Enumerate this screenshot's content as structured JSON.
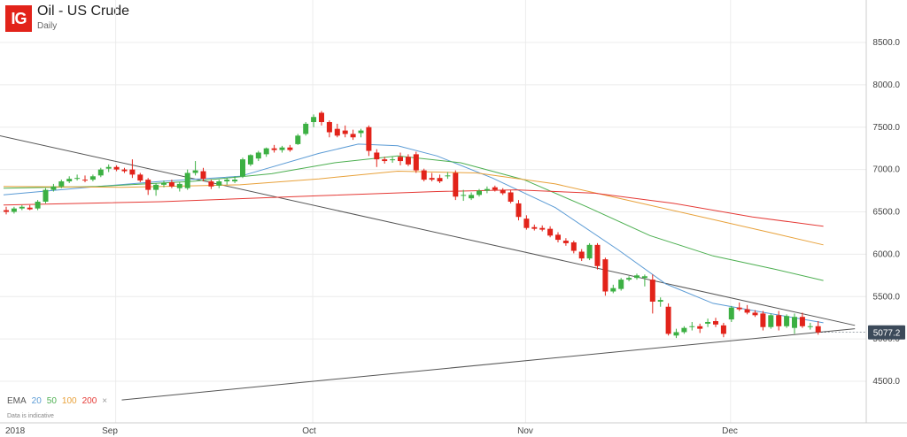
{
  "header": {
    "logo_text": "IG",
    "title": "Oil - US Crude",
    "timeframe": "Daily"
  },
  "legend": {
    "label": "EMA",
    "periods": [
      "20",
      "50",
      "100",
      "200"
    ],
    "colors": [
      "#5b9bd5",
      "#4caf50",
      "#e8a13a",
      "#e53935"
    ],
    "close": "×"
  },
  "note": "Data is indicative",
  "colors": {
    "up": "#3cb043",
    "down": "#e2231a",
    "trendline": "#555555",
    "price_tag": "#3c4a5a"
  },
  "chart_data": {
    "type": "candlestick",
    "y_ticks": [
      4500,
      5000,
      5500,
      6000,
      6500,
      7000,
      7500,
      8000,
      8500
    ],
    "y_tick_labels": [
      "4500.0",
      "5000.0",
      "5500.0",
      "6000.0",
      "6500.0",
      "7000.0",
      "7500.0",
      "8000.0",
      "8500.0"
    ],
    "x_labels": [
      "2018",
      "Sep",
      "Oct",
      "Nov",
      "Dec"
    ],
    "last_price": "5077.2",
    "candles": [
      {
        "o": 6520,
        "h": 6560,
        "l": 6470,
        "c": 6500
      },
      {
        "o": 6500,
        "h": 6560,
        "l": 6480,
        "c": 6540
      },
      {
        "o": 6540,
        "h": 6580,
        "l": 6520,
        "c": 6560
      },
      {
        "o": 6550,
        "h": 6580,
        "l": 6520,
        "c": 6530
      },
      {
        "o": 6540,
        "h": 6640,
        "l": 6520,
        "c": 6620
      },
      {
        "o": 6620,
        "h": 6780,
        "l": 6600,
        "c": 6760
      },
      {
        "o": 6760,
        "h": 6830,
        "l": 6740,
        "c": 6800
      },
      {
        "o": 6800,
        "h": 6880,
        "l": 6780,
        "c": 6860
      },
      {
        "o": 6860,
        "h": 6920,
        "l": 6840,
        "c": 6890
      },
      {
        "o": 6890,
        "h": 6940,
        "l": 6870,
        "c": 6900
      },
      {
        "o": 6880,
        "h": 6930,
        "l": 6850,
        "c": 6870
      },
      {
        "o": 6880,
        "h": 6940,
        "l": 6860,
        "c": 6920
      },
      {
        "o": 6930,
        "h": 7020,
        "l": 6910,
        "c": 7000
      },
      {
        "o": 7010,
        "h": 7060,
        "l": 6970,
        "c": 7030
      },
      {
        "o": 7030,
        "h": 7050,
        "l": 6980,
        "c": 7000
      },
      {
        "o": 7000,
        "h": 7020,
        "l": 6960,
        "c": 6980
      },
      {
        "o": 7000,
        "h": 7120,
        "l": 6900,
        "c": 6940
      },
      {
        "o": 6940,
        "h": 6960,
        "l": 6850,
        "c": 6870
      },
      {
        "o": 6880,
        "h": 6900,
        "l": 6700,
        "c": 6760
      },
      {
        "o": 6760,
        "h": 6840,
        "l": 6690,
        "c": 6820
      },
      {
        "o": 6820,
        "h": 6870,
        "l": 6790,
        "c": 6840
      },
      {
        "o": 6850,
        "h": 6880,
        "l": 6780,
        "c": 6800
      },
      {
        "o": 6780,
        "h": 6850,
        "l": 6740,
        "c": 6830
      },
      {
        "o": 6780,
        "h": 7000,
        "l": 6760,
        "c": 6960
      },
      {
        "o": 6960,
        "h": 7100,
        "l": 6930,
        "c": 6990
      },
      {
        "o": 6980,
        "h": 7020,
        "l": 6860,
        "c": 6890
      },
      {
        "o": 6860,
        "h": 6880,
        "l": 6770,
        "c": 6800
      },
      {
        "o": 6810,
        "h": 6880,
        "l": 6780,
        "c": 6860
      },
      {
        "o": 6860,
        "h": 6900,
        "l": 6820,
        "c": 6880
      },
      {
        "o": 6860,
        "h": 6920,
        "l": 6840,
        "c": 6880
      },
      {
        "o": 6920,
        "h": 7140,
        "l": 6900,
        "c": 7120
      },
      {
        "o": 7060,
        "h": 7180,
        "l": 7040,
        "c": 7170
      },
      {
        "o": 7130,
        "h": 7220,
        "l": 7100,
        "c": 7200
      },
      {
        "o": 7180,
        "h": 7260,
        "l": 7150,
        "c": 7250
      },
      {
        "o": 7250,
        "h": 7290,
        "l": 7200,
        "c": 7230
      },
      {
        "o": 7230,
        "h": 7280,
        "l": 7200,
        "c": 7260
      },
      {
        "o": 7260,
        "h": 7290,
        "l": 7210,
        "c": 7230
      },
      {
        "o": 7300,
        "h": 7420,
        "l": 7290,
        "c": 7400
      },
      {
        "o": 7420,
        "h": 7560,
        "l": 7400,
        "c": 7540
      },
      {
        "o": 7560,
        "h": 7650,
        "l": 7500,
        "c": 7620
      },
      {
        "o": 7670,
        "h": 7690,
        "l": 7520,
        "c": 7560
      },
      {
        "o": 7560,
        "h": 7580,
        "l": 7380,
        "c": 7440
      },
      {
        "o": 7480,
        "h": 7540,
        "l": 7380,
        "c": 7400
      },
      {
        "o": 7460,
        "h": 7520,
        "l": 7380,
        "c": 7420
      },
      {
        "o": 7420,
        "h": 7470,
        "l": 7350,
        "c": 7380
      },
      {
        "o": 7430,
        "h": 7480,
        "l": 7380,
        "c": 7460
      },
      {
        "o": 7500,
        "h": 7520,
        "l": 7160,
        "c": 7220
      },
      {
        "o": 7200,
        "h": 7240,
        "l": 7030,
        "c": 7120
      },
      {
        "o": 7120,
        "h": 7150,
        "l": 7070,
        "c": 7100
      },
      {
        "o": 7110,
        "h": 7150,
        "l": 7080,
        "c": 7120
      },
      {
        "o": 7150,
        "h": 7200,
        "l": 7050,
        "c": 7100
      },
      {
        "o": 7150,
        "h": 7180,
        "l": 7040,
        "c": 7060
      },
      {
        "o": 7180,
        "h": 7210,
        "l": 6960,
        "c": 6990
      },
      {
        "o": 6990,
        "h": 7010,
        "l": 6860,
        "c": 6880
      },
      {
        "o": 6900,
        "h": 6960,
        "l": 6860,
        "c": 6880
      },
      {
        "o": 6900,
        "h": 6940,
        "l": 6840,
        "c": 6860
      },
      {
        "o": 6920,
        "h": 6970,
        "l": 6890,
        "c": 6930
      },
      {
        "o": 6960,
        "h": 6990,
        "l": 6640,
        "c": 6680
      },
      {
        "o": 6700,
        "h": 6760,
        "l": 6630,
        "c": 6700
      },
      {
        "o": 6660,
        "h": 6730,
        "l": 6640,
        "c": 6700
      },
      {
        "o": 6700,
        "h": 6770,
        "l": 6680,
        "c": 6750
      },
      {
        "o": 6750,
        "h": 6800,
        "l": 6720,
        "c": 6770
      },
      {
        "o": 6790,
        "h": 6810,
        "l": 6740,
        "c": 6760
      },
      {
        "o": 6760,
        "h": 6780,
        "l": 6700,
        "c": 6720
      },
      {
        "o": 6730,
        "h": 6760,
        "l": 6600,
        "c": 6620
      },
      {
        "o": 6600,
        "h": 6640,
        "l": 6400,
        "c": 6440
      },
      {
        "o": 6420,
        "h": 6460,
        "l": 6290,
        "c": 6310
      },
      {
        "o": 6320,
        "h": 6350,
        "l": 6280,
        "c": 6300
      },
      {
        "o": 6310,
        "h": 6340,
        "l": 6270,
        "c": 6290
      },
      {
        "o": 6300,
        "h": 6330,
        "l": 6200,
        "c": 6220
      },
      {
        "o": 6230,
        "h": 6260,
        "l": 6140,
        "c": 6170
      },
      {
        "o": 6160,
        "h": 6190,
        "l": 6100,
        "c": 6130
      },
      {
        "o": 6140,
        "h": 6160,
        "l": 6010,
        "c": 6040
      },
      {
        "o": 6030,
        "h": 6060,
        "l": 5920,
        "c": 5950
      },
      {
        "o": 5950,
        "h": 6130,
        "l": 5930,
        "c": 6110
      },
      {
        "o": 6110,
        "h": 6130,
        "l": 5820,
        "c": 5860
      },
      {
        "o": 5940,
        "h": 5960,
        "l": 5510,
        "c": 5560
      },
      {
        "o": 5560,
        "h": 5640,
        "l": 5540,
        "c": 5600
      },
      {
        "o": 5590,
        "h": 5720,
        "l": 5570,
        "c": 5700
      },
      {
        "o": 5700,
        "h": 5740,
        "l": 5680,
        "c": 5720
      },
      {
        "o": 5720,
        "h": 5770,
        "l": 5700,
        "c": 5750
      },
      {
        "o": 5720,
        "h": 5760,
        "l": 5620,
        "c": 5740
      },
      {
        "o": 5700,
        "h": 5760,
        "l": 5300,
        "c": 5440
      },
      {
        "o": 5440,
        "h": 5490,
        "l": 5380,
        "c": 5460
      },
      {
        "o": 5380,
        "h": 5420,
        "l": 5040,
        "c": 5060
      },
      {
        "o": 5040,
        "h": 5120,
        "l": 5010,
        "c": 5080
      },
      {
        "o": 5080,
        "h": 5150,
        "l": 5060,
        "c": 5130
      },
      {
        "o": 5140,
        "h": 5200,
        "l": 5100,
        "c": 5150
      },
      {
        "o": 5150,
        "h": 5180,
        "l": 5070,
        "c": 5120
      },
      {
        "o": 5180,
        "h": 5240,
        "l": 5140,
        "c": 5200
      },
      {
        "o": 5210,
        "h": 5250,
        "l": 5140,
        "c": 5170
      },
      {
        "o": 5160,
        "h": 5190,
        "l": 5020,
        "c": 5060
      },
      {
        "o": 5230,
        "h": 5390,
        "l": 5200,
        "c": 5370
      },
      {
        "o": 5370,
        "h": 5430,
        "l": 5330,
        "c": 5350
      },
      {
        "o": 5350,
        "h": 5400,
        "l": 5290,
        "c": 5310
      },
      {
        "o": 5310,
        "h": 5340,
        "l": 5260,
        "c": 5280
      },
      {
        "o": 5300,
        "h": 5330,
        "l": 5100,
        "c": 5140
      },
      {
        "o": 5140,
        "h": 5300,
        "l": 5120,
        "c": 5280
      },
      {
        "o": 5280,
        "h": 5330,
        "l": 5100,
        "c": 5150
      },
      {
        "o": 5150,
        "h": 5290,
        "l": 5130,
        "c": 5270
      },
      {
        "o": 5130,
        "h": 5300,
        "l": 5060,
        "c": 5260
      },
      {
        "o": 5260,
        "h": 5310,
        "l": 5130,
        "c": 5150
      },
      {
        "o": 5140,
        "h": 5190,
        "l": 5110,
        "c": 5150
      },
      {
        "o": 5150,
        "h": 5210,
        "l": 5050,
        "c": 5077.2
      }
    ],
    "ema_series": [
      {
        "name": "20",
        "color": "#5b9bd5",
        "points": [
          [
            0,
            6700
          ],
          [
            12,
            6800
          ],
          [
            20,
            6860
          ],
          [
            30,
            6920
          ],
          [
            40,
            7190
          ],
          [
            45,
            7300
          ],
          [
            50,
            7280
          ],
          [
            55,
            7160
          ],
          [
            62,
            6900
          ],
          [
            70,
            6550
          ],
          [
            78,
            6050
          ],
          [
            84,
            5650
          ],
          [
            90,
            5420
          ],
          [
            96,
            5320
          ],
          [
            104,
            5190
          ]
        ]
      },
      {
        "name": "50",
        "color": "#4caf50",
        "points": [
          [
            0,
            6780
          ],
          [
            12,
            6800
          ],
          [
            24,
            6860
          ],
          [
            34,
            6950
          ],
          [
            42,
            7080
          ],
          [
            50,
            7160
          ],
          [
            58,
            7080
          ],
          [
            66,
            6880
          ],
          [
            74,
            6560
          ],
          [
            82,
            6220
          ],
          [
            90,
            5980
          ],
          [
            98,
            5820
          ],
          [
            104,
            5690
          ]
        ]
      },
      {
        "name": "100",
        "color": "#e8a13a",
        "points": [
          [
            0,
            6800
          ],
          [
            15,
            6790
          ],
          [
            30,
            6820
          ],
          [
            40,
            6890
          ],
          [
            50,
            6980
          ],
          [
            60,
            6960
          ],
          [
            70,
            6830
          ],
          [
            80,
            6620
          ],
          [
            90,
            6410
          ],
          [
            98,
            6240
          ],
          [
            104,
            6110
          ]
        ]
      },
      {
        "name": "200",
        "color": "#e53935",
        "points": [
          [
            0,
            6580
          ],
          [
            20,
            6620
          ],
          [
            40,
            6690
          ],
          [
            55,
            6740
          ],
          [
            65,
            6760
          ],
          [
            75,
            6720
          ],
          [
            85,
            6600
          ],
          [
            95,
            6440
          ],
          [
            104,
            6330
          ]
        ]
      }
    ],
    "trendlines": [
      {
        "from": [
          -1,
          7410
        ],
        "to": [
          108,
          5160
        ]
      },
      {
        "from": [
          15,
          4280
        ],
        "to": [
          108,
          5120
        ]
      }
    ]
  }
}
